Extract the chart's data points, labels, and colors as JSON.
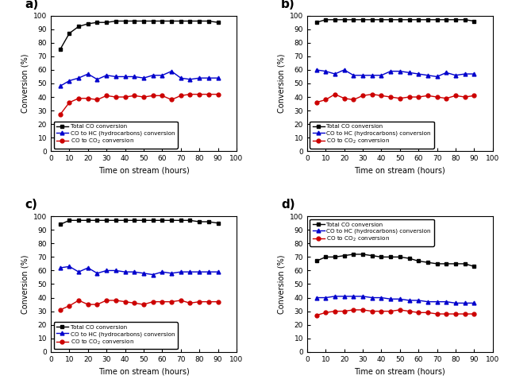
{
  "panels": [
    {
      "label": "a)",
      "legend_loc": "lower left",
      "x": [
        5,
        10,
        15,
        20,
        25,
        30,
        35,
        40,
        45,
        50,
        55,
        60,
        65,
        70,
        75,
        80,
        85,
        90
      ],
      "total": [
        75,
        87,
        92,
        94,
        95,
        95,
        96,
        96,
        96,
        96,
        96,
        96,
        96,
        96,
        96,
        96,
        96,
        95
      ],
      "hc": [
        48,
        52,
        54,
        57,
        53,
        56,
        55,
        55,
        55,
        54,
        56,
        56,
        59,
        54,
        53,
        54,
        54,
        54
      ],
      "co2": [
        27,
        36,
        39,
        39,
        38,
        41,
        40,
        40,
        41,
        40,
        41,
        41,
        38,
        41,
        42,
        42,
        42,
        42
      ]
    },
    {
      "label": "b)",
      "legend_loc": "lower left",
      "x": [
        5,
        10,
        15,
        20,
        25,
        30,
        35,
        40,
        45,
        50,
        55,
        60,
        65,
        70,
        75,
        80,
        85,
        90
      ],
      "total": [
        95,
        97,
        97,
        97,
        97,
        97,
        97,
        97,
        97,
        97,
        97,
        97,
        97,
        97,
        97,
        97,
        97,
        96
      ],
      "hc": [
        60,
        59,
        57,
        60,
        56,
        56,
        56,
        56,
        59,
        59,
        58,
        57,
        56,
        55,
        58,
        56,
        57,
        57
      ],
      "co2": [
        36,
        38,
        42,
        39,
        38,
        41,
        42,
        41,
        40,
        39,
        40,
        40,
        41,
        40,
        39,
        41,
        40,
        41
      ]
    },
    {
      "label": "c)",
      "legend_loc": "lower left",
      "x": [
        5,
        10,
        15,
        20,
        25,
        30,
        35,
        40,
        45,
        50,
        55,
        60,
        65,
        70,
        75,
        80,
        85,
        90
      ],
      "total": [
        94,
        97,
        97,
        97,
        97,
        97,
        97,
        97,
        97,
        97,
        97,
        97,
        97,
        97,
        97,
        96,
        96,
        95
      ],
      "hc": [
        62,
        63,
        59,
        62,
        58,
        60,
        60,
        59,
        59,
        58,
        57,
        59,
        58,
        59,
        59,
        59,
        59,
        59
      ],
      "co2": [
        31,
        34,
        38,
        35,
        35,
        38,
        38,
        37,
        36,
        35,
        37,
        37,
        37,
        38,
        36,
        37,
        37,
        37
      ]
    },
    {
      "label": "d)",
      "legend_loc": "upper left",
      "x": [
        5,
        10,
        15,
        20,
        25,
        30,
        35,
        40,
        45,
        50,
        55,
        60,
        65,
        70,
        75,
        80,
        85,
        90
      ],
      "total": [
        67,
        70,
        70,
        71,
        72,
        72,
        71,
        70,
        70,
        70,
        69,
        67,
        66,
        65,
        65,
        65,
        65,
        63
      ],
      "hc": [
        40,
        40,
        41,
        41,
        41,
        41,
        40,
        40,
        39,
        39,
        38,
        38,
        37,
        37,
        37,
        36,
        36,
        36
      ],
      "co2": [
        27,
        29,
        30,
        30,
        31,
        31,
        30,
        30,
        30,
        31,
        30,
        29,
        29,
        28,
        28,
        28,
        28,
        28
      ]
    }
  ],
  "colors": {
    "total": "#000000",
    "hc": "#0000cc",
    "co2": "#cc0000"
  },
  "xlabel": "Time on stream (hours)",
  "ylabel": "Conversion (%)",
  "legend_labels": [
    "Total CO conversion",
    "CO to HC (hydrocarbons) conversion",
    "CO to CO$_2$ conversion"
  ],
  "xlim": [
    0,
    100
  ],
  "ylim": [
    0,
    100
  ],
  "xticks": [
    0,
    10,
    20,
    30,
    40,
    50,
    60,
    70,
    80,
    90,
    100
  ],
  "yticks": [
    0,
    10,
    20,
    30,
    40,
    50,
    60,
    70,
    80,
    90,
    100
  ]
}
